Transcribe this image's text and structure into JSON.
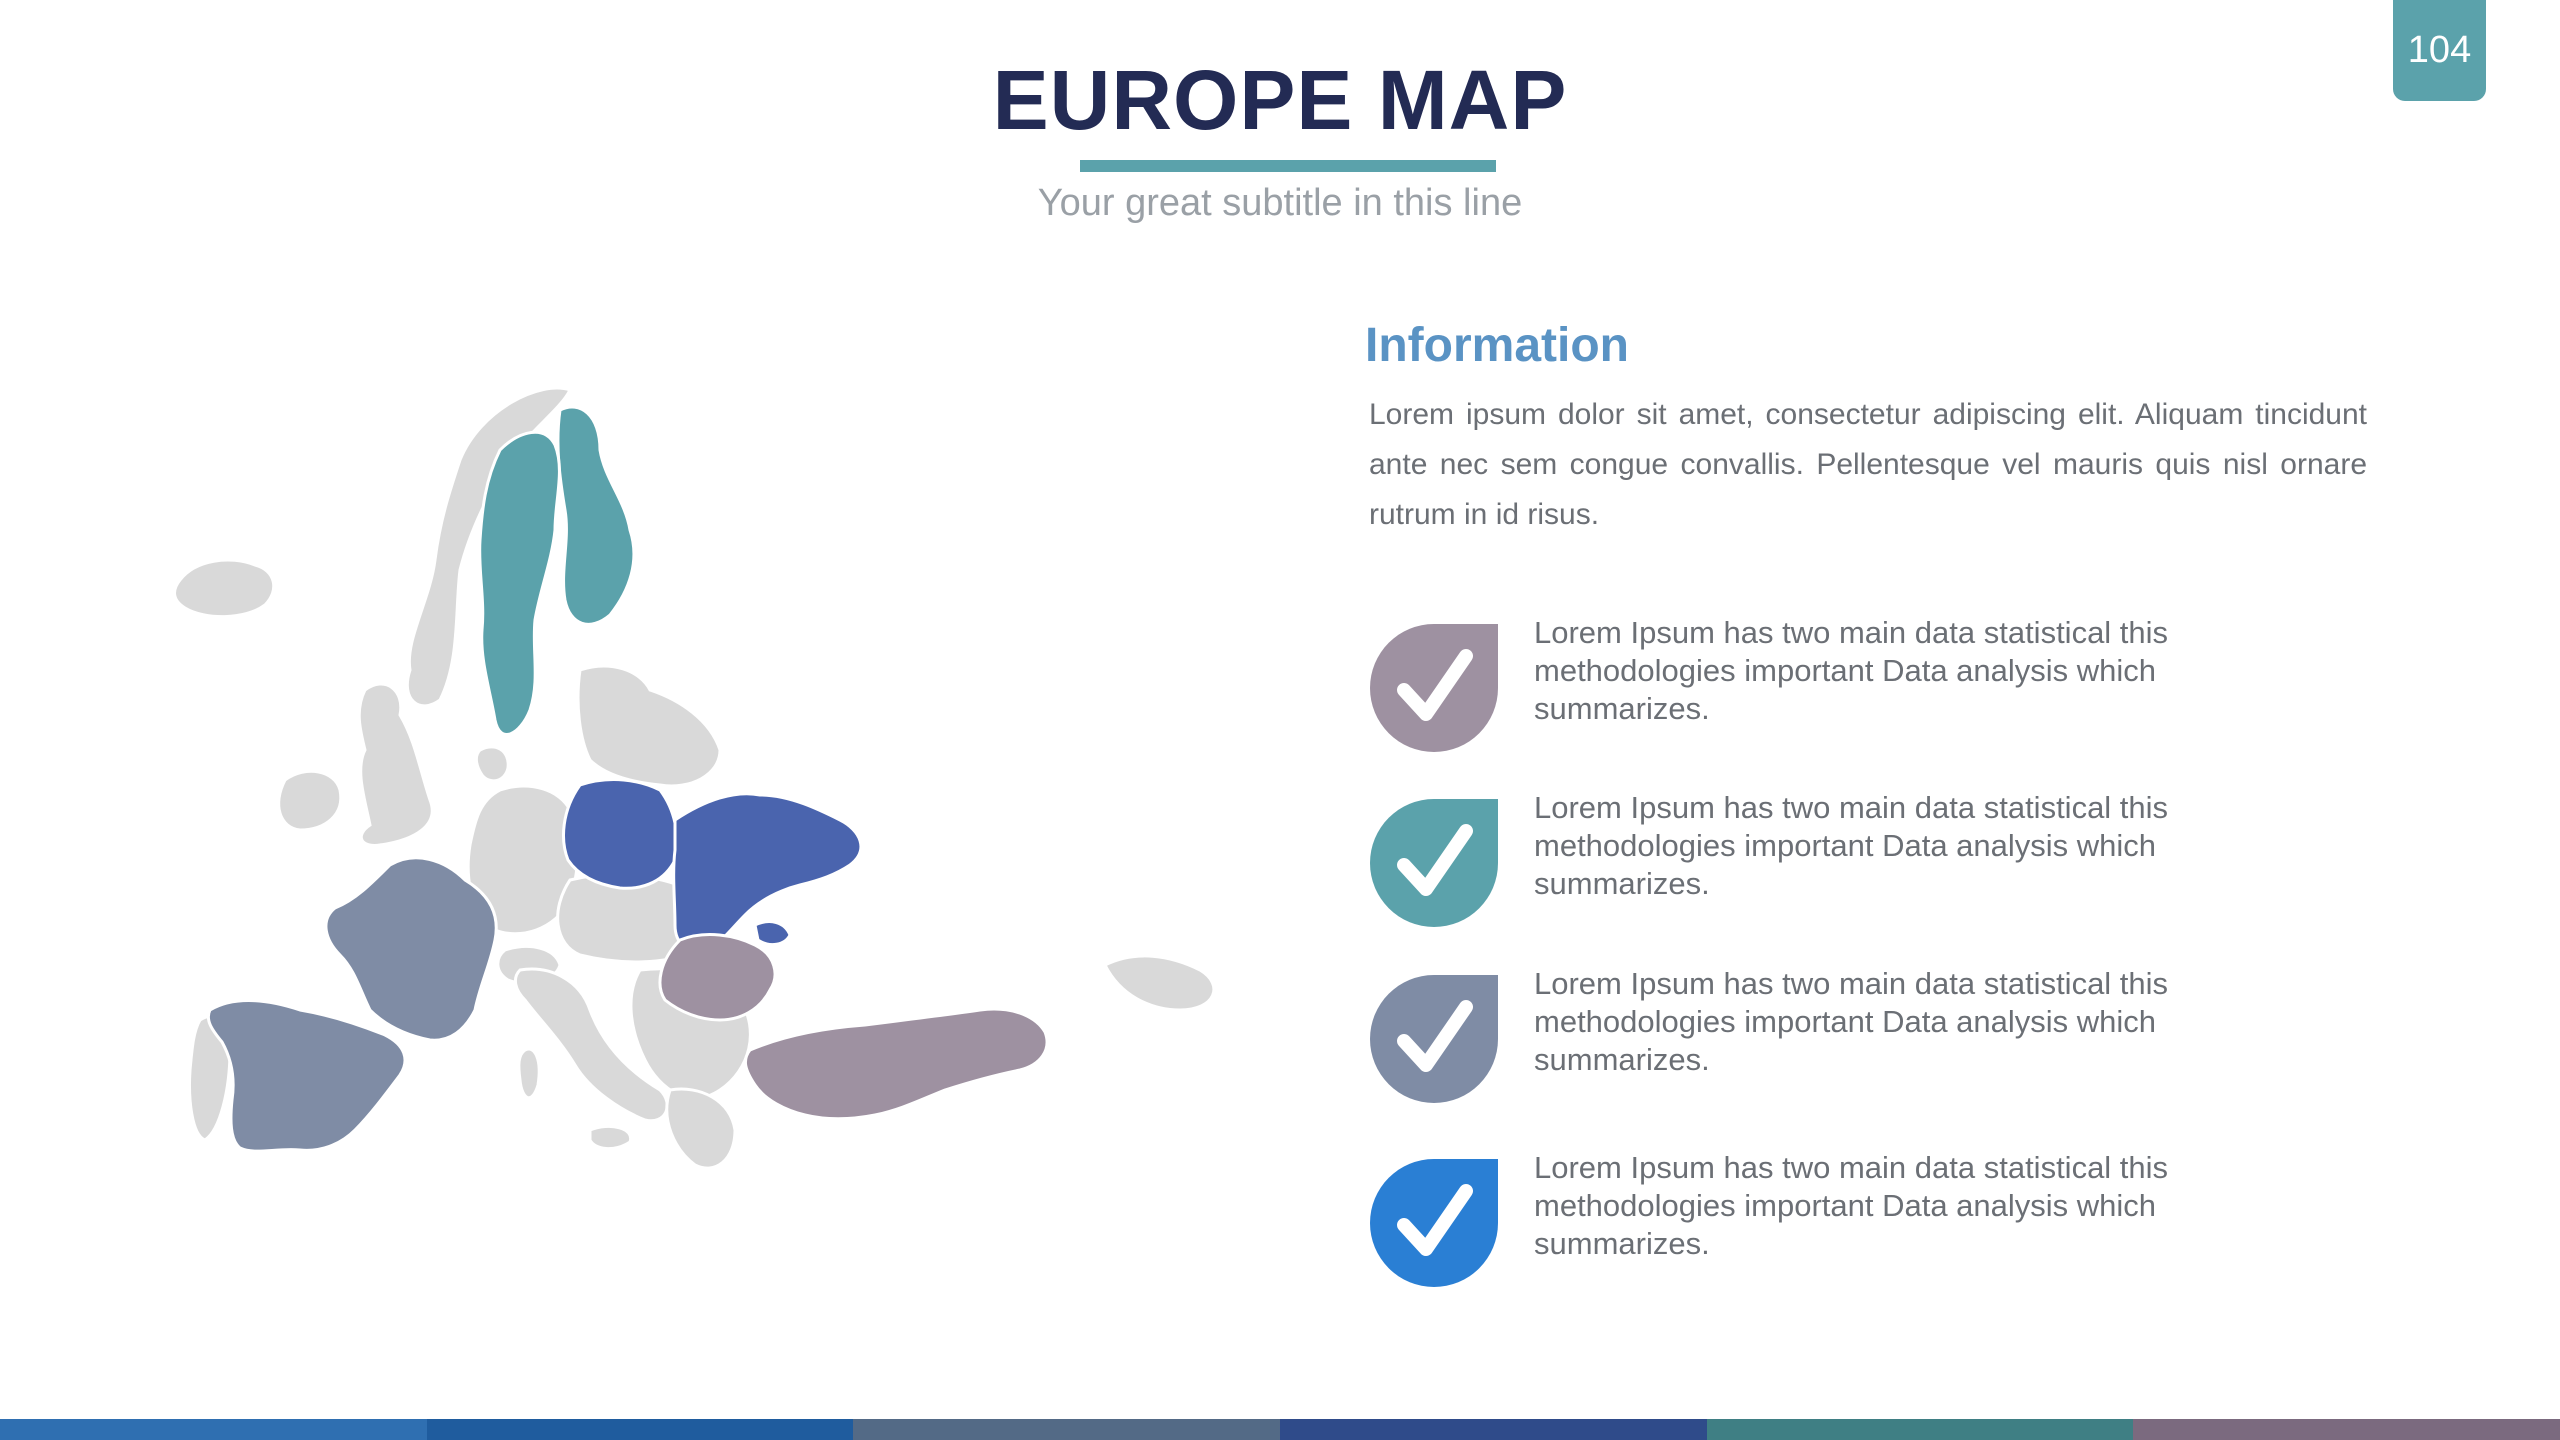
{
  "page_number": "104",
  "header": {
    "title": "EUROPE MAP",
    "subtitle": "Your great subtitle in this line"
  },
  "info": {
    "heading": "Information",
    "body": "Lorem ipsum dolor sit amet, consectetur adipiscing elit. Aliquam tincidunt ante nec sem congue convallis. Pellentesque vel mauris quis nisl ornare rutrum in id risus."
  },
  "checklist": [
    {
      "text": "Lorem Ipsum has two main data statistical this methodologies important Data analysis which summarizes.",
      "color": "#9e91a1",
      "icon": "check-icon"
    },
    {
      "text": "Lorem Ipsum has two main data statistical this methodologies important Data analysis which summarizes.",
      "color": "#5ba2ab",
      "icon": "check-icon"
    },
    {
      "text": "Lorem Ipsum has two main data statistical this methodologies important Data analysis which summarizes.",
      "color": "#7f8ca5",
      "icon": "check-icon"
    },
    {
      "text": "Lorem Ipsum has two main data statistical this methodologies important Data analysis which summarizes.",
      "color": "#2a7fd4",
      "icon": "check-icon"
    }
  ],
  "map_colors": {
    "base": "#d9d9d9",
    "nordic": "#5ba2ab",
    "poland_ukraine": "#4a64ae",
    "france_spain": "#7f8ca5",
    "romania_turkey": "#9e91a1"
  },
  "bottom_bar_colors": [
    "#2f6fb1",
    "#1f5c9e",
    "#536a86",
    "#2f4b8a",
    "#3f7f84",
    "#7b6a7f"
  ]
}
